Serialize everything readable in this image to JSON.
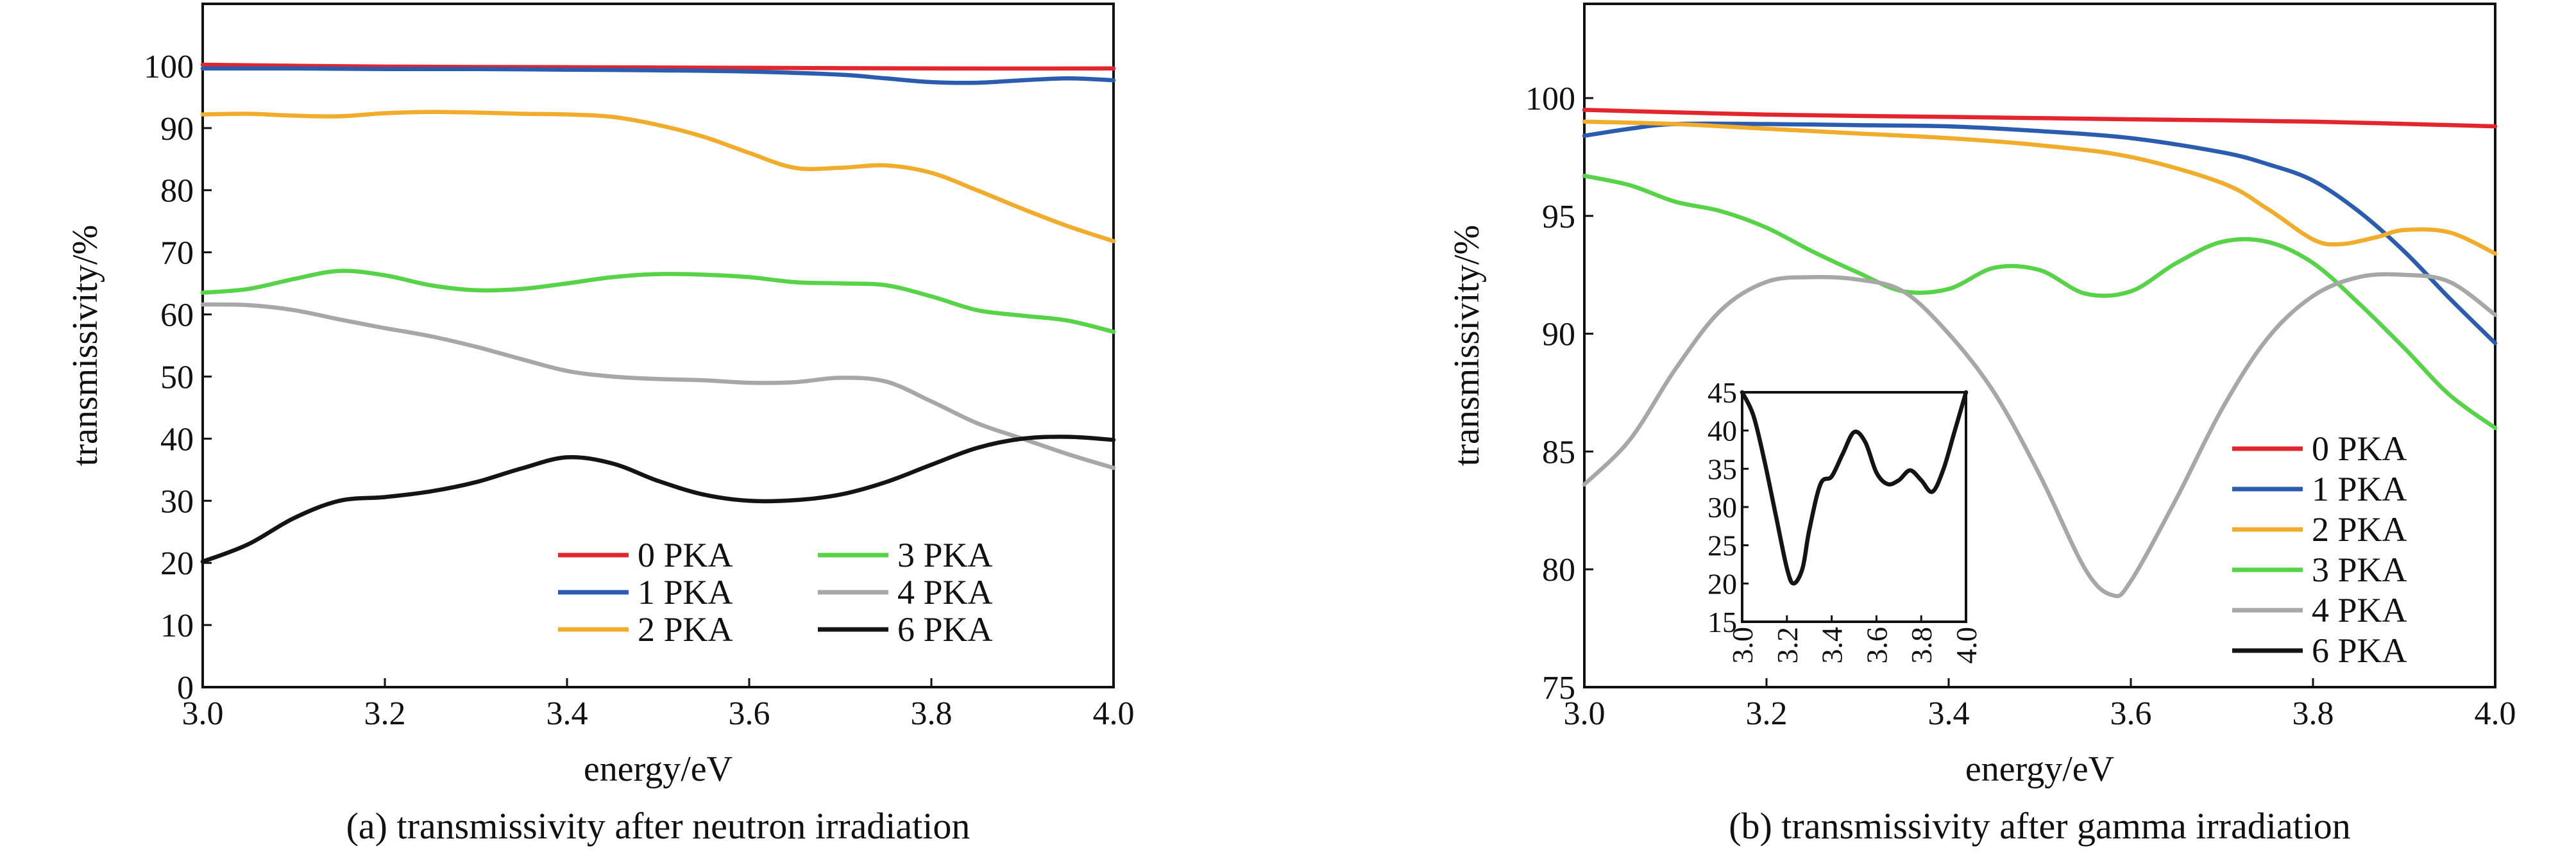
{
  "chart_data": [
    {
      "type": "line",
      "caption": "(a) transmissivity after neutron irradiation",
      "xlabel": "energy/eV",
      "ylabel": "transmissivity/%",
      "xlim": [
        3.0,
        4.0
      ],
      "ylim": [
        0,
        110
      ],
      "xticks": [
        "3.0",
        "3.2",
        "3.4",
        "3.6",
        "3.8",
        "4.0"
      ],
      "yticks": [
        "0",
        "10",
        "20",
        "30",
        "40",
        "50",
        "60",
        "70",
        "80",
        "90",
        "100"
      ],
      "legend_position": "bottom-right",
      "legend_columns": 2,
      "series": [
        {
          "name": "0 PKA",
          "color": "#e3262e",
          "x": [
            3.0,
            3.2,
            3.4,
            3.6,
            3.8,
            4.0
          ],
          "y": [
            100.2,
            99.9,
            99.8,
            99.7,
            99.6,
            99.6
          ]
        },
        {
          "name": "1 PKA",
          "color": "#2a5db0",
          "x": [
            3.0,
            3.1,
            3.2,
            3.3,
            3.4,
            3.5,
            3.6,
            3.7,
            3.75,
            3.8,
            3.85,
            3.9,
            3.95,
            4.0
          ],
          "y": [
            99.6,
            99.6,
            99.5,
            99.5,
            99.4,
            99.3,
            99.1,
            98.6,
            98.0,
            97.4,
            97.3,
            97.7,
            98.0,
            97.7
          ]
        },
        {
          "name": "2 PKA",
          "color": "#f2ac2b",
          "x": [
            3.0,
            3.05,
            3.1,
            3.15,
            3.2,
            3.25,
            3.3,
            3.35,
            3.4,
            3.45,
            3.5,
            3.55,
            3.6,
            3.65,
            3.7,
            3.75,
            3.8,
            3.85,
            3.9,
            3.95,
            4.0
          ],
          "y": [
            92.2,
            92.3,
            92.0,
            91.9,
            92.4,
            92.6,
            92.5,
            92.3,
            92.2,
            91.8,
            90.5,
            88.6,
            86.0,
            83.6,
            83.6,
            84.0,
            82.8,
            80.0,
            77.0,
            74.2,
            71.8
          ]
        },
        {
          "name": "3 PKA",
          "color": "#57d347",
          "x": [
            3.0,
            3.05,
            3.1,
            3.15,
            3.2,
            3.25,
            3.3,
            3.35,
            3.4,
            3.45,
            3.5,
            3.55,
            3.6,
            3.65,
            3.7,
            3.75,
            3.8,
            3.85,
            3.9,
            3.95,
            4.0
          ],
          "y": [
            63.5,
            64.1,
            65.7,
            67.0,
            66.3,
            64.7,
            63.9,
            64.1,
            65.0,
            66.0,
            66.5,
            66.4,
            66.0,
            65.2,
            65.0,
            64.7,
            62.9,
            60.7,
            59.8,
            59.0,
            57.2
          ]
        },
        {
          "name": "4 PKA",
          "color": "#a6a8a6",
          "x": [
            3.0,
            3.05,
            3.1,
            3.15,
            3.2,
            3.25,
            3.3,
            3.35,
            3.4,
            3.45,
            3.5,
            3.55,
            3.6,
            3.65,
            3.7,
            3.75,
            3.8,
            3.85,
            3.9,
            3.95,
            4.0
          ],
          "y": [
            61.6,
            61.5,
            60.7,
            59.2,
            57.8,
            56.5,
            54.8,
            52.8,
            50.9,
            50.0,
            49.6,
            49.4,
            49.0,
            49.1,
            49.8,
            49.2,
            46.0,
            42.5,
            40.0,
            37.5,
            35.3
          ]
        },
        {
          "name": "6 PKA",
          "color": "#141414",
          "x": [
            3.0,
            3.05,
            3.1,
            3.15,
            3.2,
            3.25,
            3.3,
            3.35,
            3.4,
            3.45,
            3.5,
            3.55,
            3.6,
            3.65,
            3.7,
            3.75,
            3.8,
            3.85,
            3.9,
            3.95,
            4.0
          ],
          "y": [
            20.2,
            23.0,
            27.2,
            30.0,
            30.6,
            31.5,
            33.0,
            35.2,
            37.0,
            36.0,
            33.2,
            31.0,
            30.0,
            30.1,
            31.0,
            33.0,
            35.8,
            38.5,
            40.0,
            40.3,
            39.8
          ]
        }
      ]
    },
    {
      "type": "line",
      "caption": "(b) transmissivity after gamma irradiation",
      "xlabel": "energy/eV",
      "ylabel": "transmissivity/%",
      "xlim": [
        3.0,
        4.0
      ],
      "ylim": [
        75,
        104
      ],
      "xticks": [
        "3.0",
        "3.2",
        "3.4",
        "3.6",
        "3.8",
        "4.0"
      ],
      "yticks": [
        "75",
        "80",
        "85",
        "90",
        "95",
        "100"
      ],
      "legend_position": "right",
      "legend_columns": 1,
      "series": [
        {
          "name": "0 PKA",
          "color": "#e3262e",
          "x": [
            3.0,
            3.2,
            3.4,
            3.6,
            3.8,
            4.0
          ],
          "y": [
            99.5,
            99.3,
            99.2,
            99.1,
            99.0,
            98.8
          ]
        },
        {
          "name": "1 PKA",
          "color": "#2a5db0",
          "x": [
            3.0,
            3.05,
            3.1,
            3.2,
            3.3,
            3.4,
            3.5,
            3.6,
            3.7,
            3.75,
            3.8,
            3.85,
            3.9,
            3.95,
            4.0
          ],
          "y": [
            98.4,
            98.7,
            98.9,
            98.9,
            98.85,
            98.8,
            98.6,
            98.3,
            97.7,
            97.2,
            96.5,
            95.2,
            93.5,
            91.5,
            89.6
          ]
        },
        {
          "name": "2 PKA",
          "color": "#f2ac2b",
          "x": [
            3.0,
            3.1,
            3.2,
            3.3,
            3.4,
            3.5,
            3.6,
            3.7,
            3.75,
            3.8,
            3.83,
            3.87,
            3.9,
            3.95,
            4.0
          ],
          "y": [
            99.0,
            98.9,
            98.7,
            98.5,
            98.3,
            98.0,
            97.5,
            96.4,
            95.3,
            94.0,
            93.8,
            94.1,
            94.4,
            94.3,
            93.4
          ]
        },
        {
          "name": "3 PKA",
          "color": "#57d347",
          "x": [
            3.0,
            3.05,
            3.1,
            3.15,
            3.2,
            3.25,
            3.3,
            3.35,
            3.4,
            3.45,
            3.5,
            3.55,
            3.6,
            3.65,
            3.7,
            3.75,
            3.8,
            3.85,
            3.9,
            3.95,
            4.0
          ],
          "y": [
            96.7,
            96.3,
            95.6,
            95.2,
            94.5,
            93.5,
            92.6,
            91.8,
            91.9,
            92.8,
            92.7,
            91.7,
            91.8,
            93.0,
            93.9,
            93.9,
            93.0,
            91.3,
            89.4,
            87.4,
            86.0
          ]
        },
        {
          "name": "4 PKA",
          "color": "#a6a8a6",
          "x": [
            3.0,
            3.05,
            3.1,
            3.15,
            3.2,
            3.25,
            3.3,
            3.35,
            3.4,
            3.45,
            3.5,
            3.55,
            3.58,
            3.6,
            3.65,
            3.7,
            3.75,
            3.8,
            3.85,
            3.9,
            3.95,
            4.0
          ],
          "y": [
            83.6,
            85.5,
            88.5,
            91.0,
            92.2,
            92.4,
            92.3,
            91.8,
            90.0,
            87.5,
            84.0,
            80.0,
            78.9,
            79.5,
            83.0,
            86.8,
            89.8,
            91.6,
            92.4,
            92.5,
            92.2,
            90.8
          ]
        },
        {
          "name": "6 PKA",
          "color": "#141414",
          "x": [],
          "y": []
        }
      ],
      "inset": {
        "xlim": [
          3.0,
          4.0
        ],
        "ylim": [
          15,
          45
        ],
        "xticks": [
          "3.0",
          "3.2",
          "3.4",
          "3.6",
          "3.8",
          "4.0"
        ],
        "yticks": [
          "15",
          "20",
          "25",
          "30",
          "35",
          "40",
          "45"
        ],
        "series": {
          "name": "6 PKA",
          "color": "#141414",
          "x": [
            3.0,
            3.05,
            3.1,
            3.15,
            3.2,
            3.23,
            3.27,
            3.3,
            3.35,
            3.4,
            3.45,
            3.5,
            3.55,
            3.6,
            3.65,
            3.7,
            3.75,
            3.8,
            3.85,
            3.9,
            3.95,
            4.0
          ],
          "y": [
            45.0,
            42.0,
            36.0,
            29.0,
            22.0,
            20.0,
            22.0,
            27.0,
            33.0,
            34.0,
            37.0,
            39.8,
            38.5,
            34.5,
            33.0,
            33.5,
            34.8,
            33.5,
            32.0,
            35.0,
            40.0,
            45.0
          ]
        }
      }
    }
  ]
}
